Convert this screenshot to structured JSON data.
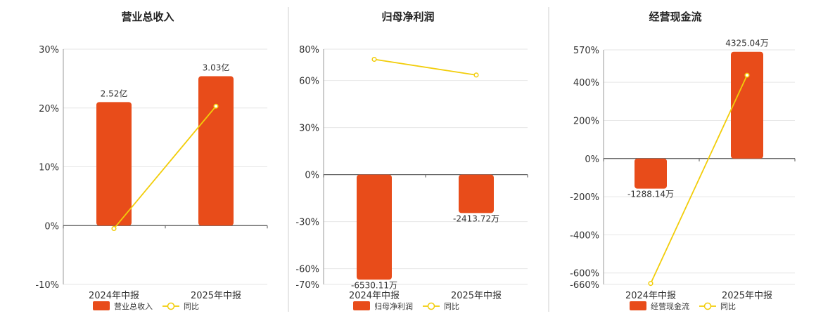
{
  "colors": {
    "bar": "#e84c1a",
    "line": "#f2cd0a",
    "grid": "#e6e6e6",
    "axis": "#555555",
    "divider": "#cfcfcf",
    "text": "#333333"
  },
  "chart_data": [
    {
      "type": "bar",
      "title": "营业总收入",
      "categories": [
        "2024年中报",
        "2025年中报"
      ],
      "y_ticks": [
        "30%",
        "20%",
        "10%",
        "0%",
        "-10%"
      ],
      "ylim": [
        -10,
        30
      ],
      "series": [
        {
          "name": "营业总收入",
          "kind": "bar",
          "bar_heights": [
            21.0,
            25.4
          ],
          "labels": [
            "2.52亿",
            "3.03亿"
          ]
        },
        {
          "name": "同比",
          "kind": "line",
          "values": [
            -0.5,
            20.3
          ]
        }
      ],
      "legend": [
        "营业总收入",
        "同比"
      ]
    },
    {
      "type": "bar",
      "title": "归母净利润",
      "categories": [
        "2024年中报",
        "2025年中报"
      ],
      "y_ticks": [
        "80%",
        "60%",
        "30%",
        "0%",
        "-30%",
        "-60%",
        "-70%"
      ],
      "ylim": [
        -70,
        80
      ],
      "series": [
        {
          "name": "归母净利润",
          "kind": "bar",
          "bar_heights": [
            -67,
            -24.5
          ],
          "labels": [
            "-6530.11万",
            "-2413.72万"
          ]
        },
        {
          "name": "同比",
          "kind": "line",
          "values": [
            73.5,
            63.5
          ]
        }
      ],
      "legend": [
        "归母净利润",
        "同比"
      ]
    },
    {
      "type": "bar",
      "title": "经营现金流",
      "categories": [
        "2024年中报",
        "2025年中报"
      ],
      "y_ticks": [
        "570%",
        "400%",
        "200%",
        "0%",
        "-200%",
        "-400%",
        "-600%",
        "-660%"
      ],
      "ylim": [
        -660,
        570
      ],
      "series": [
        {
          "name": "经营现金流",
          "kind": "bar",
          "bar_heights": [
            -158,
            560
          ],
          "labels": [
            "-1288.14万",
            "4325.04万"
          ]
        },
        {
          "name": "同比",
          "kind": "line",
          "values": [
            -655,
            437
          ]
        }
      ],
      "legend": [
        "经营现金流",
        "同比"
      ]
    }
  ]
}
